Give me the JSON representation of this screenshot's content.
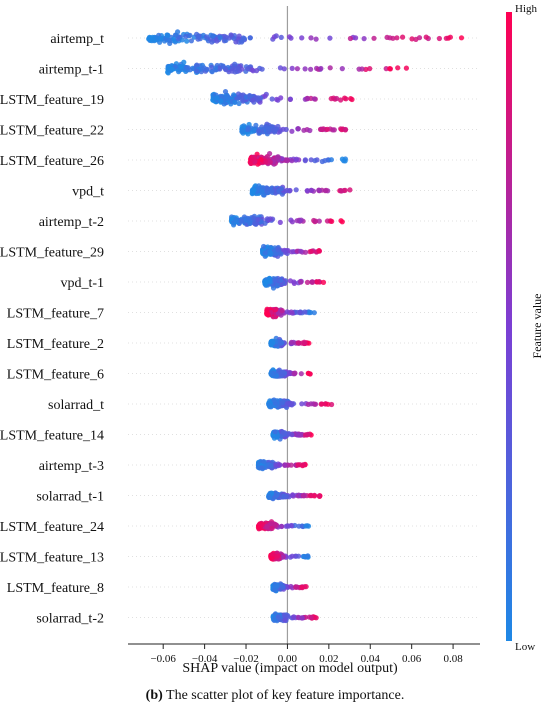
{
  "chart_data": {
    "type": "scatter",
    "subtype": "shap-beeswarm",
    "xlabel": "SHAP value (impact on model output)",
    "xlim": [
      -0.077,
      0.093
    ],
    "xticks": [
      -0.06,
      -0.04,
      -0.02,
      0.0,
      0.02,
      0.04,
      0.06,
      0.08
    ],
    "xtick_labels": [
      "−0.06",
      "−0.04",
      "−0.02",
      "0.00",
      "0.02",
      "0.04",
      "0.06",
      "0.08"
    ],
    "colorbar": {
      "label": "Feature value",
      "high": "High",
      "low": "Low",
      "low_color": "#1e88e5",
      "mid_color": "#7b3fd4",
      "high_color": "#ff0052"
    },
    "features": [
      {
        "name": "airtemp_t",
        "min": -0.067,
        "max": 0.086,
        "spread": 1.0,
        "hiSide": 1
      },
      {
        "name": "airtemp_t-1",
        "min": -0.058,
        "max": 0.062,
        "spread": 1.0,
        "hiSide": 1
      },
      {
        "name": "LSTM_feature_19",
        "min": -0.036,
        "max": 0.035,
        "spread": 1.0,
        "hiSide": 1
      },
      {
        "name": "LSTM_feature_22",
        "min": -0.022,
        "max": 0.032,
        "spread": 0.85,
        "hiSide": 1
      },
      {
        "name": "LSTM_feature_26",
        "min": -0.018,
        "max": 0.028,
        "spread": 0.9,
        "hiSide": -1
      },
      {
        "name": "vpd_t",
        "min": -0.017,
        "max": 0.032,
        "spread": 0.8,
        "hiSide": 1
      },
      {
        "name": "airtemp_t-2",
        "min": -0.027,
        "max": 0.027,
        "spread": 0.8,
        "hiSide": 1
      },
      {
        "name": "LSTM_feature_29",
        "min": -0.012,
        "max": 0.017,
        "spread": 0.8,
        "hiSide": 1
      },
      {
        "name": "vpd_t-1",
        "min": -0.011,
        "max": 0.018,
        "spread": 0.75,
        "hiSide": 1
      },
      {
        "name": "LSTM_feature_7",
        "min": -0.01,
        "max": 0.013,
        "spread": 0.7,
        "hiSide": -1
      },
      {
        "name": "LSTM_feature_2",
        "min": -0.008,
        "max": 0.011,
        "spread": 0.65,
        "hiSide": 1
      },
      {
        "name": "LSTM_feature_6",
        "min": -0.008,
        "max": 0.012,
        "spread": 0.6,
        "hiSide": 1
      },
      {
        "name": "solarrad_t",
        "min": -0.009,
        "max": 0.022,
        "spread": 0.6,
        "hiSide": 1
      },
      {
        "name": "LSTM_feature_14",
        "min": -0.007,
        "max": 0.012,
        "spread": 0.6,
        "hiSide": 1
      },
      {
        "name": "airtemp_t-3",
        "min": -0.014,
        "max": 0.009,
        "spread": 0.65,
        "hiSide": 1
      },
      {
        "name": "solarrad_t-1",
        "min": -0.009,
        "max": 0.016,
        "spread": 0.6,
        "hiSide": 1
      },
      {
        "name": "LSTM_feature_24",
        "min": -0.014,
        "max": 0.011,
        "spread": 0.7,
        "hiSide": -1
      },
      {
        "name": "LSTM_feature_13",
        "min": -0.008,
        "max": 0.01,
        "spread": 0.6,
        "hiSide": -1
      },
      {
        "name": "LSTM_feature_8",
        "min": -0.007,
        "max": 0.01,
        "spread": 0.6,
        "hiSide": 1
      },
      {
        "name": "solarrad_t-2",
        "min": -0.007,
        "max": 0.014,
        "spread": 0.6,
        "hiSide": 1
      }
    ]
  },
  "caption": {
    "letter": "(b)",
    "text": " The scatter plot of key feature importance."
  }
}
